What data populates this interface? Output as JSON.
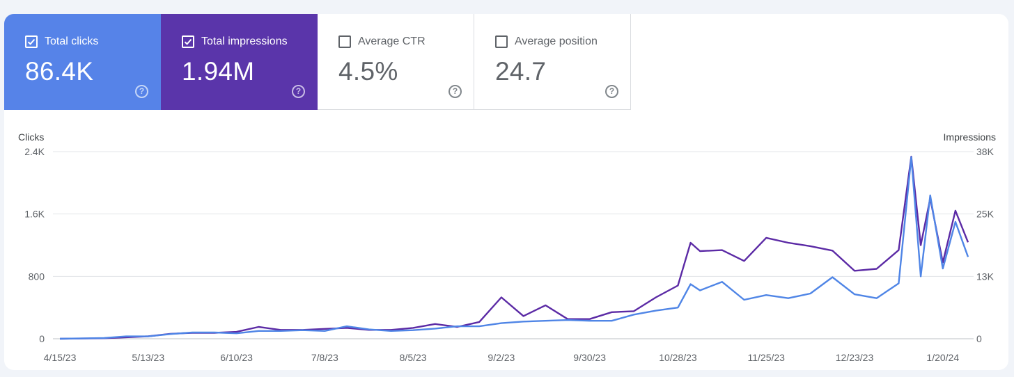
{
  "cards": [
    {
      "id": "clicks",
      "label": "Total clicks",
      "value": "86.4K",
      "checked": true,
      "color": "#5683e8"
    },
    {
      "id": "impressions",
      "label": "Total impressions",
      "value": "1.94M",
      "checked": true,
      "color": "#5a35aa"
    },
    {
      "id": "ctr",
      "label": "Average CTR",
      "value": "4.5%",
      "checked": false,
      "color": "#ffffff"
    },
    {
      "id": "position",
      "label": "Average position",
      "value": "24.7",
      "checked": false,
      "color": "#ffffff"
    }
  ],
  "help_icon": "?",
  "chart_data": {
    "type": "line",
    "ylabel_left": "Clicks",
    "ylabel_right": "Impressions",
    "left_ticks": [
      "0",
      "800",
      "1.6K",
      "2.4K"
    ],
    "right_ticks": [
      "0",
      "13K",
      "25K",
      "38K"
    ],
    "ylim_left": [
      0,
      2400
    ],
    "ylim_right": [
      0,
      38000
    ],
    "x_labels": [
      "4/15/23",
      "5/13/23",
      "6/10/23",
      "7/8/23",
      "8/5/23",
      "9/2/23",
      "9/30/23",
      "10/28/23",
      "11/25/23",
      "12/23/23",
      "1/20/24"
    ],
    "grid": true,
    "series": [
      {
        "name": "Clicks",
        "axis": "left",
        "color": "#4f85e6",
        "points": [
          [
            "2023-04-15",
            0
          ],
          [
            "2023-04-29",
            10
          ],
          [
            "2023-05-06",
            30
          ],
          [
            "2023-05-13",
            30
          ],
          [
            "2023-05-20",
            60
          ],
          [
            "2023-05-27",
            80
          ],
          [
            "2023-06-03",
            80
          ],
          [
            "2023-06-10",
            70
          ],
          [
            "2023-06-17",
            100
          ],
          [
            "2023-06-24",
            100
          ],
          [
            "2023-07-01",
            110
          ],
          [
            "2023-07-08",
            100
          ],
          [
            "2023-07-15",
            160
          ],
          [
            "2023-07-22",
            120
          ],
          [
            "2023-07-29",
            100
          ],
          [
            "2023-08-05",
            110
          ],
          [
            "2023-08-12",
            130
          ],
          [
            "2023-08-19",
            160
          ],
          [
            "2023-08-26",
            160
          ],
          [
            "2023-09-02",
            200
          ],
          [
            "2023-09-09",
            220
          ],
          [
            "2023-09-16",
            230
          ],
          [
            "2023-09-23",
            240
          ],
          [
            "2023-09-30",
            230
          ],
          [
            "2023-10-07",
            230
          ],
          [
            "2023-10-14",
            310
          ],
          [
            "2023-10-21",
            360
          ],
          [
            "2023-10-28",
            400
          ],
          [
            "2023-11-01",
            700
          ],
          [
            "2023-11-04",
            620
          ],
          [
            "2023-11-11",
            730
          ],
          [
            "2023-11-18",
            500
          ],
          [
            "2023-11-25",
            560
          ],
          [
            "2023-12-02",
            520
          ],
          [
            "2023-12-09",
            580
          ],
          [
            "2023-12-16",
            790
          ],
          [
            "2023-12-23",
            570
          ],
          [
            "2023-12-30",
            520
          ],
          [
            "2024-01-06",
            710
          ],
          [
            "2024-01-10",
            2330
          ],
          [
            "2024-01-13",
            800
          ],
          [
            "2024-01-16",
            1840
          ],
          [
            "2024-01-20",
            900
          ],
          [
            "2024-01-24",
            1500
          ],
          [
            "2024-01-28",
            1050
          ]
        ]
      },
      {
        "name": "Impressions",
        "axis": "right",
        "color": "#5b2aa5",
        "points": [
          [
            "2023-04-15",
            0
          ],
          [
            "2023-04-29",
            100
          ],
          [
            "2023-05-06",
            300
          ],
          [
            "2023-05-13",
            500
          ],
          [
            "2023-05-20",
            1000
          ],
          [
            "2023-05-27",
            1200
          ],
          [
            "2023-06-03",
            1200
          ],
          [
            "2023-06-10",
            1400
          ],
          [
            "2023-06-17",
            2400
          ],
          [
            "2023-06-24",
            1800
          ],
          [
            "2023-07-01",
            1800
          ],
          [
            "2023-07-08",
            2000
          ],
          [
            "2023-07-15",
            2200
          ],
          [
            "2023-07-22",
            1800
          ],
          [
            "2023-07-29",
            1800
          ],
          [
            "2023-08-05",
            2200
          ],
          [
            "2023-08-12",
            3000
          ],
          [
            "2023-08-19",
            2400
          ],
          [
            "2023-08-26",
            3400
          ],
          [
            "2023-09-02",
            8400
          ],
          [
            "2023-09-09",
            4600
          ],
          [
            "2023-09-16",
            6800
          ],
          [
            "2023-09-23",
            4000
          ],
          [
            "2023-09-30",
            4000
          ],
          [
            "2023-10-07",
            5400
          ],
          [
            "2023-10-14",
            5600
          ],
          [
            "2023-10-21",
            8400
          ],
          [
            "2023-10-28",
            10800
          ],
          [
            "2023-11-01",
            19500
          ],
          [
            "2023-11-04",
            17800
          ],
          [
            "2023-11-11",
            18000
          ],
          [
            "2023-11-18",
            15800
          ],
          [
            "2023-11-25",
            20500
          ],
          [
            "2023-12-02",
            19500
          ],
          [
            "2023-12-09",
            18800
          ],
          [
            "2023-12-16",
            17900
          ],
          [
            "2023-12-23",
            13800
          ],
          [
            "2023-12-30",
            14200
          ],
          [
            "2024-01-06",
            18000
          ],
          [
            "2024-01-10",
            37000
          ],
          [
            "2024-01-13",
            19000
          ],
          [
            "2024-01-16",
            28500
          ],
          [
            "2024-01-20",
            15500
          ],
          [
            "2024-01-24",
            26000
          ],
          [
            "2024-01-28",
            19600
          ]
        ]
      }
    ]
  }
}
